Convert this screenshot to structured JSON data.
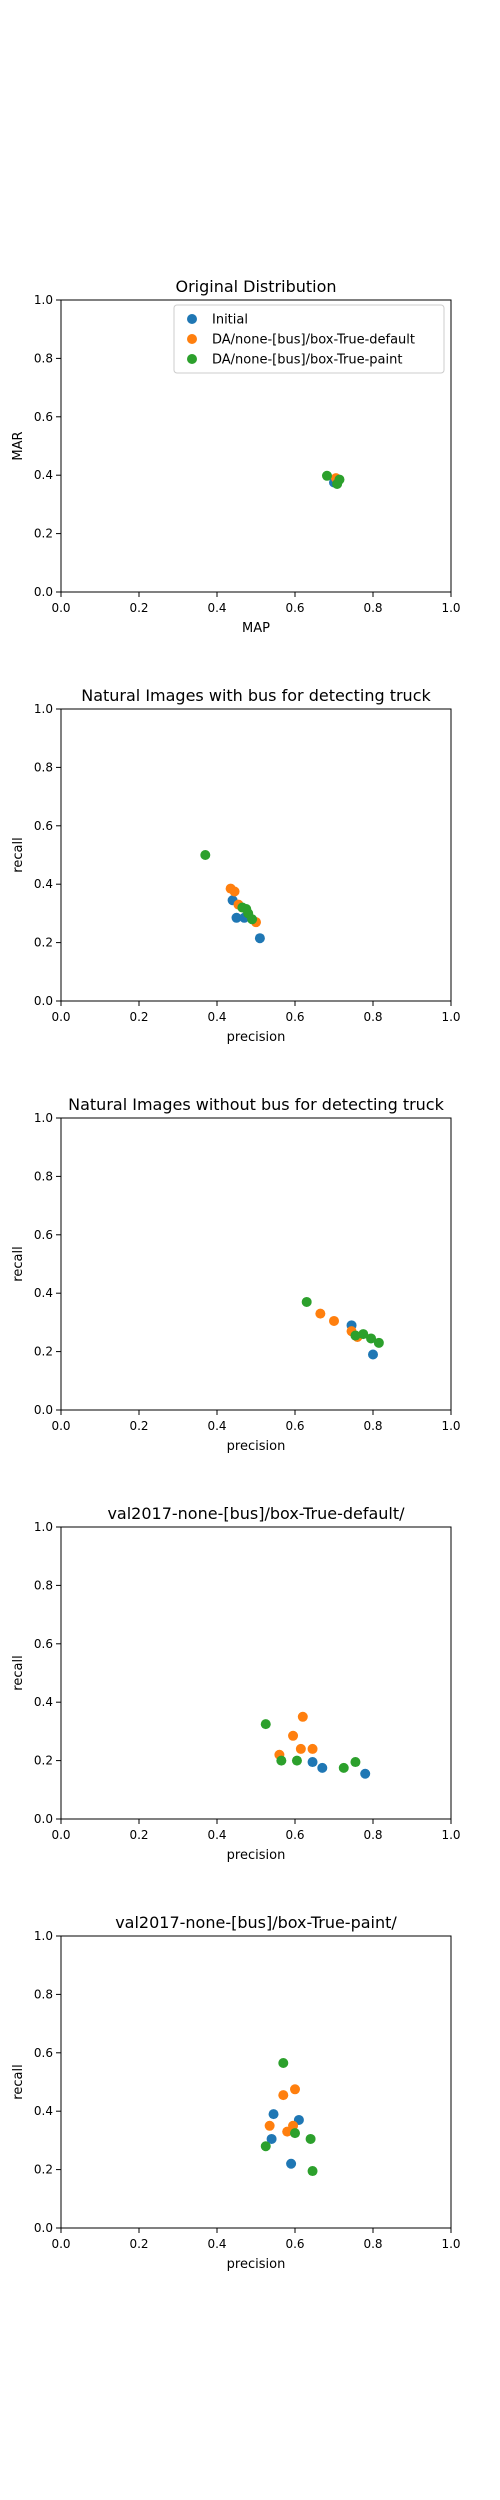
{
  "chart_data": [
    {
      "type": "scatter",
      "title": "Original Distribution",
      "xlabel": "MAP",
      "ylabel": "MAR",
      "xlim": [
        0,
        1
      ],
      "ylim": [
        0,
        1
      ],
      "xticks": [
        "0.0",
        "0.2",
        "0.4",
        "0.6",
        "0.8",
        "1.0"
      ],
      "yticks": [
        "0.0",
        "0.2",
        "0.4",
        "0.6",
        "0.8",
        "1.0"
      ],
      "grid": false,
      "legend": "top-right",
      "series": [
        {
          "name": "Initial",
          "color": "#1f77b4",
          "points": [
            [
              0.7,
              0.375
            ]
          ]
        },
        {
          "name": "DA/none-[bus]/box-True-default",
          "color": "#ff7f0e",
          "points": [
            [
              0.705,
              0.39
            ]
          ]
        },
        {
          "name": "DA/none-[bus]/box-True-paint",
          "color": "#2ca02c",
          "points": [
            [
              0.682,
              0.398
            ],
            [
              0.708,
              0.37
            ],
            [
              0.714,
              0.385
            ]
          ]
        }
      ]
    },
    {
      "type": "scatter",
      "title": "Natural Images with bus for detecting truck",
      "xlabel": "precision",
      "ylabel": "recall",
      "xlim": [
        0,
        1
      ],
      "ylim": [
        0,
        1
      ],
      "xticks": [
        "0.0",
        "0.2",
        "0.4",
        "0.6",
        "0.8",
        "1.0"
      ],
      "yticks": [
        "0.0",
        "0.2",
        "0.4",
        "0.6",
        "0.8",
        "1.0"
      ],
      "grid": false,
      "series": [
        {
          "name": "",
          "color": "#1f77b4",
          "points": [
            [
              0.44,
              0.345
            ],
            [
              0.45,
              0.285
            ],
            [
              0.47,
              0.285
            ],
            [
              0.51,
              0.215
            ]
          ]
        },
        {
          "name": "",
          "color": "#ff7f0e",
          "points": [
            [
              0.435,
              0.385
            ],
            [
              0.445,
              0.375
            ],
            [
              0.455,
              0.33
            ],
            [
              0.5,
              0.27
            ]
          ]
        },
        {
          "name": "",
          "color": "#2ca02c",
          "points": [
            [
              0.37,
              0.5
            ],
            [
              0.465,
              0.32
            ],
            [
              0.475,
              0.315
            ],
            [
              0.48,
              0.3
            ],
            [
              0.49,
              0.28
            ]
          ]
        }
      ]
    },
    {
      "type": "scatter",
      "title": "Natural Images without bus for detecting truck",
      "xlabel": "precision",
      "ylabel": "recall",
      "xlim": [
        0,
        1
      ],
      "ylim": [
        0,
        1
      ],
      "xticks": [
        "0.0",
        "0.2",
        "0.4",
        "0.6",
        "0.8",
        "1.0"
      ],
      "yticks": [
        "0.0",
        "0.2",
        "0.4",
        "0.6",
        "0.8",
        "1.0"
      ],
      "grid": false,
      "series": [
        {
          "name": "",
          "color": "#1f77b4",
          "points": [
            [
              0.745,
              0.29
            ],
            [
              0.8,
              0.19
            ]
          ]
        },
        {
          "name": "",
          "color": "#ff7f0e",
          "points": [
            [
              0.665,
              0.33
            ],
            [
              0.7,
              0.305
            ],
            [
              0.745,
              0.27
            ],
            [
              0.76,
              0.25
            ]
          ]
        },
        {
          "name": "",
          "color": "#2ca02c",
          "points": [
            [
              0.63,
              0.37
            ],
            [
              0.755,
              0.255
            ],
            [
              0.775,
              0.26
            ],
            [
              0.795,
              0.245
            ],
            [
              0.815,
              0.23
            ]
          ]
        }
      ]
    },
    {
      "type": "scatter",
      "title": "val2017-none-[bus]/box-True-default/",
      "xlabel": "precision",
      "ylabel": "recall",
      "xlim": [
        0,
        1
      ],
      "ylim": [
        0,
        1
      ],
      "xticks": [
        "0.0",
        "0.2",
        "0.4",
        "0.6",
        "0.8",
        "1.0"
      ],
      "yticks": [
        "0.0",
        "0.2",
        "0.4",
        "0.6",
        "0.8",
        "1.0"
      ],
      "grid": false,
      "series": [
        {
          "name": "",
          "color": "#1f77b4",
          "points": [
            [
              0.645,
              0.195
            ],
            [
              0.67,
              0.175
            ],
            [
              0.78,
              0.155
            ]
          ]
        },
        {
          "name": "",
          "color": "#ff7f0e",
          "points": [
            [
              0.56,
              0.22
            ],
            [
              0.595,
              0.285
            ],
            [
              0.615,
              0.24
            ],
            [
              0.62,
              0.35
            ],
            [
              0.645,
              0.24
            ]
          ]
        },
        {
          "name": "",
          "color": "#2ca02c",
          "points": [
            [
              0.525,
              0.325
            ],
            [
              0.565,
              0.2
            ],
            [
              0.605,
              0.2
            ],
            [
              0.725,
              0.175
            ],
            [
              0.755,
              0.195
            ]
          ]
        }
      ]
    },
    {
      "type": "scatter",
      "title": "val2017-none-[bus]/box-True-paint/",
      "xlabel": "precision",
      "ylabel": "recall",
      "xlim": [
        0,
        1
      ],
      "ylim": [
        0,
        1
      ],
      "xticks": [
        "0.0",
        "0.2",
        "0.4",
        "0.6",
        "0.8",
        "1.0"
      ],
      "yticks": [
        "0.0",
        "0.2",
        "0.4",
        "0.6",
        "0.8",
        "1.0"
      ],
      "grid": false,
      "series": [
        {
          "name": "",
          "color": "#1f77b4",
          "points": [
            [
              0.54,
              0.305
            ],
            [
              0.545,
              0.39
            ],
            [
              0.59,
              0.22
            ],
            [
              0.61,
              0.37
            ]
          ]
        },
        {
          "name": "",
          "color": "#ff7f0e",
          "points": [
            [
              0.535,
              0.35
            ],
            [
              0.57,
              0.455
            ],
            [
              0.58,
              0.33
            ],
            [
              0.595,
              0.35
            ],
            [
              0.6,
              0.475
            ]
          ]
        },
        {
          "name": "",
          "color": "#2ca02c",
          "points": [
            [
              0.525,
              0.28
            ],
            [
              0.57,
              0.565
            ],
            [
              0.6,
              0.325
            ],
            [
              0.64,
              0.305
            ],
            [
              0.645,
              0.195
            ]
          ]
        }
      ]
    }
  ]
}
